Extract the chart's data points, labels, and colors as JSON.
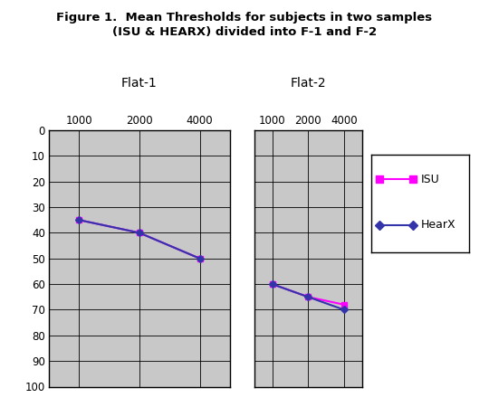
{
  "title_line1": "Figure 1.  Mean Thresholds for subjects in two samples",
  "title_line2": "(ISU & HEARX) divided into F-1 and F-2",
  "panel1_title": "Flat-1",
  "panel2_title": "Flat-2",
  "x_labels": [
    "1000",
    "2000",
    "4000"
  ],
  "x_values": [
    1,
    2,
    3
  ],
  "ylim": [
    0,
    100
  ],
  "yticks": [
    0,
    10,
    20,
    30,
    40,
    50,
    60,
    70,
    80,
    90,
    100
  ],
  "panel1": {
    "ISU": [
      35,
      40,
      50
    ],
    "HearX": [
      35,
      40,
      50
    ]
  },
  "panel2": {
    "ISU": [
      60,
      65,
      68
    ],
    "HearX": [
      60,
      65,
      70
    ]
  },
  "isu_color": "#FF00FF",
  "hearx_color": "#3333AA",
  "bg_color": "#C8C8C8",
  "figure_bg": "#FFFFFF",
  "grid_color": "#000000",
  "legend_labels": [
    "ISU",
    "HearX"
  ]
}
